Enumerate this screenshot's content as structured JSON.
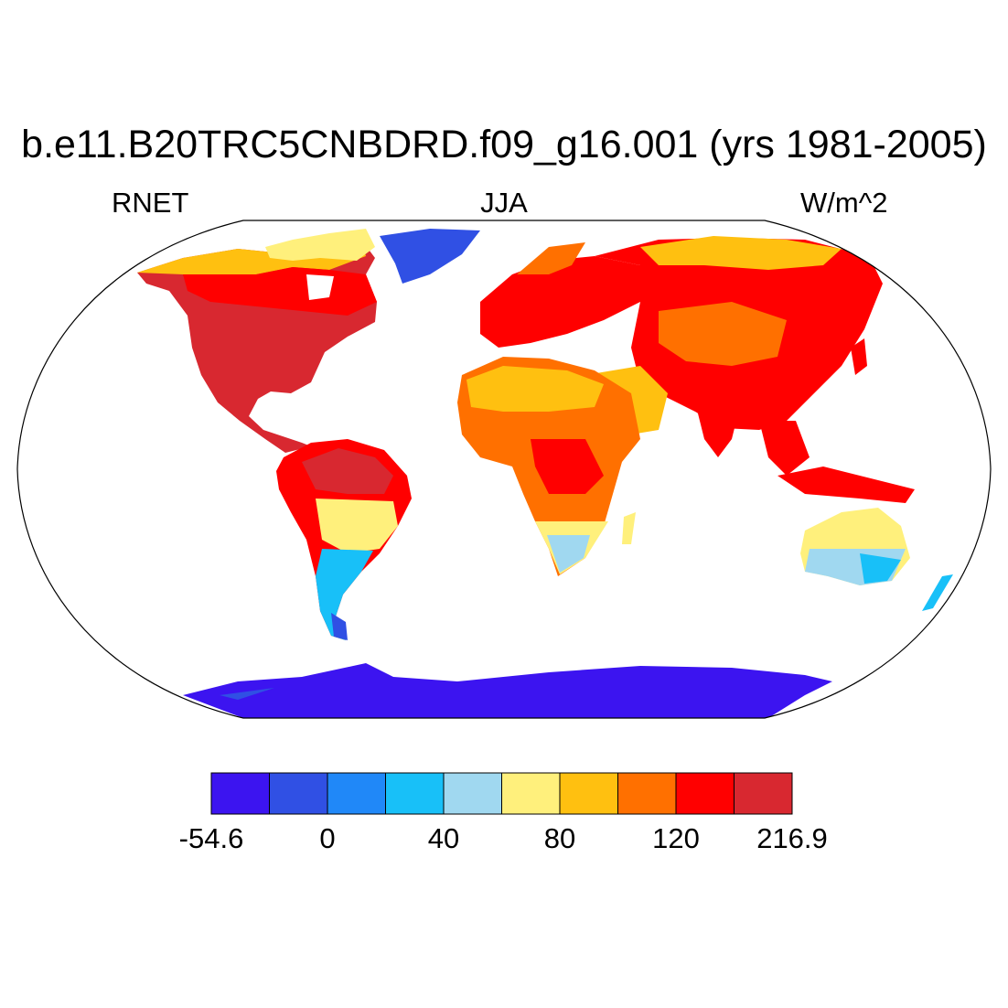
{
  "title": "b.e11.B20TRC5CNBDRD.f09_g16.001 (yrs 1981-2005)",
  "left_label": "RNET",
  "center_label": "JJA",
  "right_label": "W/m^2",
  "projection": "Robinson",
  "colorbar": {
    "colors": [
      "#3c14f0",
      "#3050e4",
      "#2088f8",
      "#18c0f8",
      "#a0d8f0",
      "#fff07c",
      "#ffc010",
      "#ff7000",
      "#ff0000",
      "#d82830"
    ],
    "labels": [
      "-54.6",
      "0",
      "40",
      "80",
      "120",
      "216.9"
    ]
  }
}
